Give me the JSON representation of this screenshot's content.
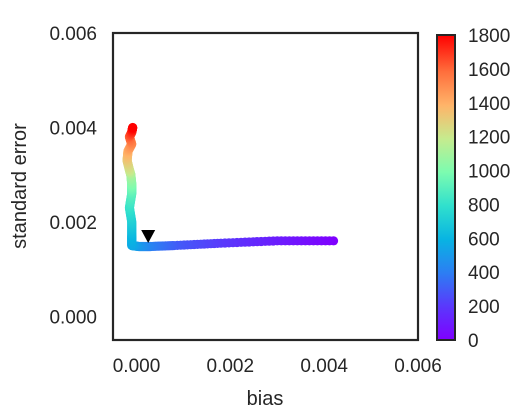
{
  "chart_data": {
    "type": "scatter",
    "xlabel": "bias",
    "ylabel": "standard error",
    "xlim": [
      -0.0005,
      0.006
    ],
    "ylim": [
      -0.0005,
      0.006
    ],
    "x_ticks": [
      "0.000",
      "0.002",
      "0.004",
      "0.006"
    ],
    "y_ticks": [
      "0.000",
      "0.002",
      "0.004",
      "0.006"
    ],
    "x_tick_values": [
      0.0,
      0.002,
      0.004,
      0.006
    ],
    "y_tick_values": [
      0.0,
      0.002,
      0.004,
      0.006
    ],
    "grid": false,
    "colormap": "rainbow",
    "colorbar": {
      "min": 0,
      "max": 1800,
      "ticks": [
        "0",
        "200",
        "400",
        "600",
        "800",
        "1000",
        "1200",
        "1400",
        "1600",
        "1800"
      ],
      "tick_values": [
        0,
        200,
        400,
        600,
        800,
        1000,
        1200,
        1400,
        1600,
        1800
      ]
    },
    "trajectory": {
      "color_value": [
        0,
        100,
        200,
        300,
        400,
        480,
        550,
        600,
        700,
        800,
        900,
        1000,
        1100,
        1200,
        1300,
        1400,
        1500,
        1600,
        1700,
        1800
      ],
      "x": [
        0.0042,
        0.003,
        0.0018,
        0.0008,
        0.0003,
        5e-05,
        -0.0001,
        -0.0001,
        -0.0001,
        -0.00015,
        -0.0001,
        -0.0001,
        -0.00012,
        -0.00015,
        -0.0002,
        -0.00018,
        -0.0001,
        -0.00015,
        -0.0001,
        -8e-05
      ],
      "y": [
        0.0016,
        0.0016,
        0.00155,
        0.0015,
        0.00148,
        0.00148,
        0.0015,
        0.0017,
        0.002,
        0.0023,
        0.0026,
        0.0028,
        0.003,
        0.0031,
        0.0033,
        0.0035,
        0.00365,
        0.0038,
        0.0039,
        0.004
      ]
    },
    "marker": {
      "shape": "triangle-down",
      "color": "#000000",
      "x": 0.00025,
      "y": 0.00168
    }
  }
}
